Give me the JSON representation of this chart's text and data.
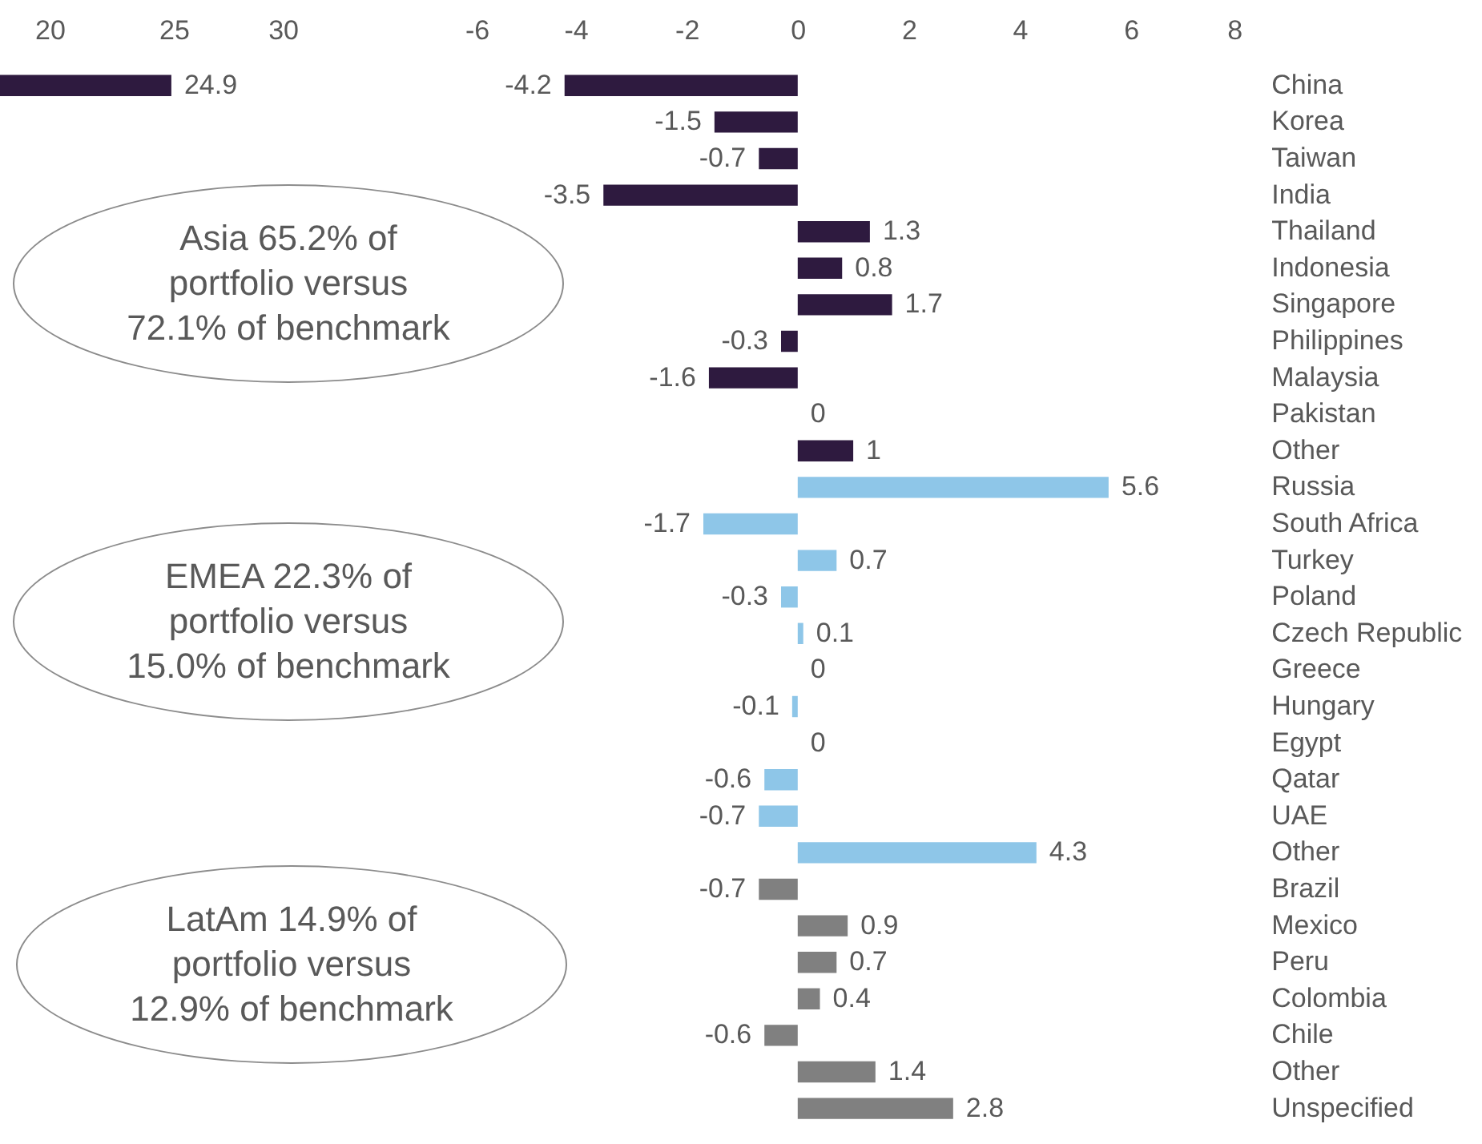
{
  "chart_data": [
    {
      "type": "bar",
      "orientation": "horizontal",
      "categories": [
        null
      ],
      "values": [
        24.9
      ],
      "color": "#2e1a3f",
      "data_labels": true,
      "xlim": [
        18,
        30
      ],
      "xticks": [
        20,
        25,
        30
      ],
      "tick_labels": "x",
      "grid": false
    },
    {
      "type": "bar",
      "orientation": "horizontal",
      "categories": [
        "China",
        "Korea",
        "Taiwan",
        "India",
        "Thailand",
        "Indonesia",
        "Singapore",
        "Philippines",
        "Malaysia",
        "Pakistan",
        "Other",
        "Russia",
        "South Africa",
        "Turkey",
        "Poland",
        "Czech Republic",
        "Greece",
        "Hungary",
        "Egypt",
        "Qatar",
        "UAE",
        "Other",
        "Brazil",
        "Mexico",
        "Peru",
        "Colombia",
        "Chile",
        "Other",
        "Unspecified"
      ],
      "values": [
        -4.2,
        -1.5,
        -0.7,
        -3.5,
        1.3,
        0.8,
        1.7,
        -0.3,
        -1.6,
        0,
        1,
        5.6,
        -1.7,
        0.7,
        -0.3,
        0.1,
        0,
        -0.1,
        0,
        -0.6,
        -0.7,
        4.3,
        -0.7,
        0.9,
        0.7,
        0.4,
        -0.6,
        1.4,
        2.8
      ],
      "colors": [
        "#2e1a3f",
        "#2e1a3f",
        "#2e1a3f",
        "#2e1a3f",
        "#2e1a3f",
        "#2e1a3f",
        "#2e1a3f",
        "#2e1a3f",
        "#2e1a3f",
        "#2e1a3f",
        "#2e1a3f",
        "#8ec6e8",
        "#8ec6e8",
        "#8ec6e8",
        "#8ec6e8",
        "#8ec6e8",
        "#8ec6e8",
        "#8ec6e8",
        "#8ec6e8",
        "#8ec6e8",
        "#8ec6e8",
        "#8ec6e8",
        "#808080",
        "#808080",
        "#808080",
        "#808080",
        "#808080",
        "#808080",
        "#808080"
      ],
      "data_labels": true,
      "xlim": [
        -6,
        8
      ],
      "xticks": [
        -6,
        -4,
        -2,
        0,
        2,
        4,
        6,
        8
      ],
      "grid": false,
      "annotations": [
        "Asia 65.2% of portfolio versus 72.1% of benchmark",
        "EMEA 22.3% of portfolio versus 15.0% of benchmark",
        "LatAm 14.9% of portfolio versus 12.9% of benchmark"
      ]
    }
  ]
}
